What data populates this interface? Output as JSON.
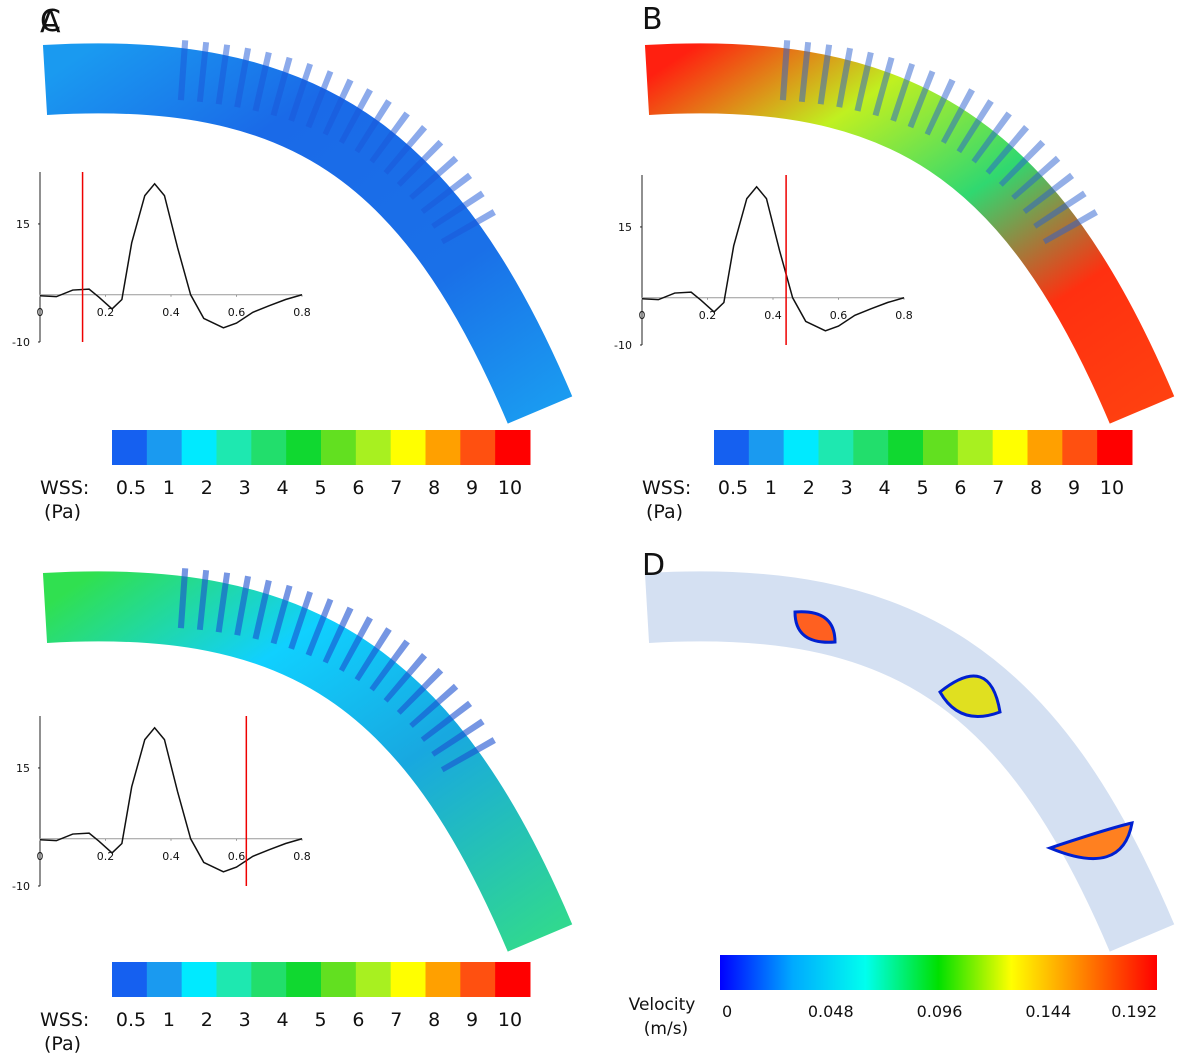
{
  "panels": [
    {
      "label": "A",
      "time": 0.13
    },
    {
      "label": "B",
      "time": 0.44
    },
    {
      "label": "C",
      "time": 0.63
    },
    {
      "label": "D"
    }
  ],
  "waveform": {
    "x": [
      0,
      0.05,
      0.1,
      0.15,
      0.18,
      0.22,
      0.25,
      0.28,
      0.32,
      0.35,
      0.38,
      0.42,
      0.46,
      0.5,
      0.56,
      0.6,
      0.65,
      0.7,
      0.75,
      0.8
    ],
    "values": [
      -0.2,
      -0.4,
      1,
      1.2,
      -0.5,
      -3,
      -1,
      11,
      21,
      23.5,
      21,
      10,
      0,
      -5,
      -7,
      -6,
      -3.7,
      -2.3,
      -1,
      0
    ],
    "xlim": [
      0,
      0.8
    ],
    "ylim": [
      -10,
      26
    ],
    "xticks": [
      0,
      0.2,
      0.4,
      0.6,
      0.8
    ],
    "yticks": [
      15,
      -10
    ]
  },
  "wss_colorbar": {
    "title": "WSS:",
    "unit": "(Pa)",
    "colors": [
      "#1560f0",
      "#1a9af0",
      "#00eaff",
      "#1ee8b0",
      "#22de6c",
      "#10d830",
      "#62e020",
      "#a8f020",
      "#ffff00",
      "#ffa000",
      "#ff5010",
      "#ff0000"
    ],
    "ticks": [
      0.5,
      1,
      2,
      3,
      4,
      5,
      6,
      7,
      8,
      9,
      10
    ]
  },
  "velocity_colorbar": {
    "title": "Velocity",
    "unit": "(m/s)",
    "colors": [
      "#0000ff",
      "#00aaff",
      "#00ffee",
      "#00e000",
      "#ffff00",
      "#ff8000",
      "#ff0000"
    ],
    "ticks": [
      0,
      0.048,
      0.096,
      0.144,
      0.192
    ]
  }
}
